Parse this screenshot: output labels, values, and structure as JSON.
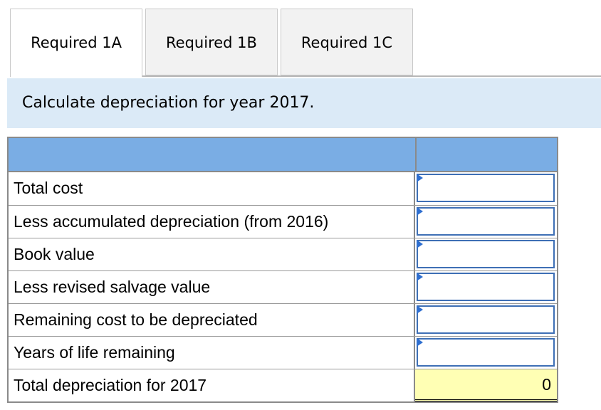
{
  "tabs": [
    {
      "label": "Required 1A",
      "active": true
    },
    {
      "label": "Required 1B",
      "active": false
    },
    {
      "label": "Required 1C",
      "active": false
    }
  ],
  "instruction": "Calculate depreciation for year 2017.",
  "table": {
    "rows": [
      {
        "label": "Total cost",
        "value": ""
      },
      {
        "label": "Less accumulated depreciation (from 2016)",
        "value": ""
      },
      {
        "label": "Book value",
        "value": ""
      },
      {
        "label": "Less revised salvage value",
        "value": ""
      },
      {
        "label": "Remaining cost to be depreciated",
        "value": ""
      },
      {
        "label": "Years of life remaining",
        "value": ""
      }
    ],
    "total": {
      "label": "Total depreciation for 2017",
      "value": "0"
    }
  },
  "colors": {
    "header": "#7aade4",
    "instruction_bg": "#dbeaf7",
    "input_border": "#3e6fb5",
    "total_bg": "#ffffb4"
  }
}
